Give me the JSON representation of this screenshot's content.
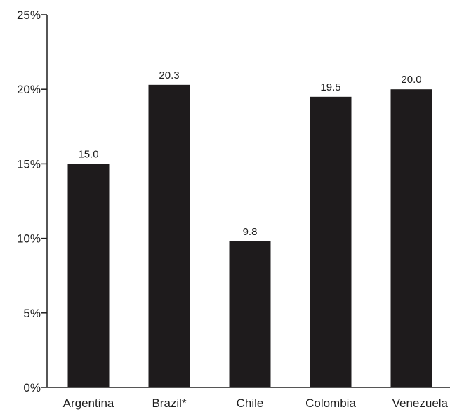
{
  "chart_data": {
    "type": "bar",
    "categories": [
      "Argentina",
      "Brazil*",
      "Chile",
      "Colombia",
      "Venezuela"
    ],
    "values": [
      15.0,
      20.3,
      9.8,
      19.5,
      20.0
    ],
    "value_labels": [
      "15.0",
      "20.3",
      "9.8",
      "19.5",
      "20.0"
    ],
    "title": "",
    "xlabel": "",
    "ylabel": "",
    "ylim": [
      0,
      25
    ],
    "yticks": [
      0,
      5,
      10,
      15,
      20,
      25
    ],
    "ytick_labels": [
      "0%",
      "5%",
      "10%",
      "15%",
      "20%",
      "25%"
    ],
    "grid": false,
    "legend": "none",
    "bar_color": "#1e1b1c",
    "text_color": "#1e1e1e"
  }
}
